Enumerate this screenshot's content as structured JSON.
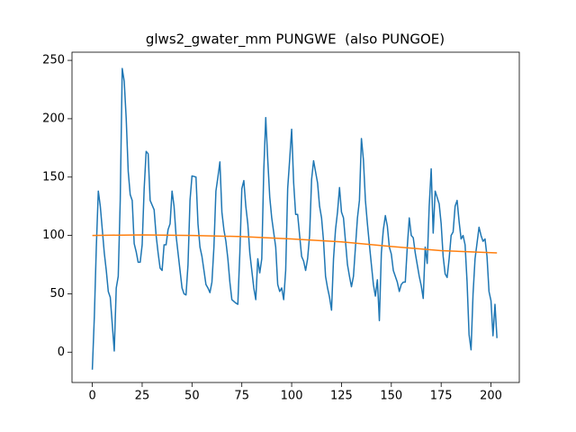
{
  "chart_data": {
    "type": "line",
    "title": "glws2_gwater_mm PUNGWE  (also PUNGOE)",
    "xlim": [
      -10.2,
      214.2
    ],
    "ylim": [
      -26,
      257
    ],
    "xticks": [
      0,
      25,
      50,
      75,
      100,
      125,
      150,
      175,
      200
    ],
    "yticks": [
      0,
      50,
      100,
      150,
      200,
      250
    ],
    "series": [
      {
        "color": "#1f77b4",
        "x": [
          0,
          1,
          2,
          3,
          4,
          5,
          6,
          7,
          8,
          9,
          11,
          12,
          13,
          14,
          15,
          16,
          17,
          18,
          19,
          20,
          21,
          22,
          23,
          24,
          25,
          26,
          27,
          28,
          29,
          31,
          32,
          33,
          34,
          35,
          36,
          37,
          38,
          39,
          40,
          41,
          42,
          43,
          44,
          45,
          46,
          47,
          48,
          49,
          50,
          52,
          53,
          54,
          55,
          56,
          57,
          58,
          59,
          60,
          61,
          62,
          63,
          64,
          65,
          66,
          67,
          68,
          69,
          70,
          72,
          73,
          74,
          75,
          76,
          77,
          78,
          79,
          80,
          81,
          82,
          83,
          84,
          85,
          86,
          87,
          88,
          89,
          90,
          92,
          93,
          94,
          95,
          96,
          97,
          98,
          99,
          100,
          101,
          102,
          103,
          104,
          105,
          106,
          107,
          108,
          109,
          110,
          111,
          113,
          114,
          115,
          116,
          117,
          118,
          119,
          120,
          121,
          122,
          123,
          124,
          125,
          126,
          127,
          128,
          129,
          130,
          131,
          133,
          134,
          135,
          136,
          137,
          138,
          139,
          140,
          141,
          142,
          143,
          144,
          145,
          146,
          147,
          148,
          149,
          150,
          151,
          153,
          154,
          155,
          156,
          157,
          158,
          159,
          160,
          161,
          162,
          163,
          164,
          165,
          166,
          167,
          168,
          169,
          170,
          171,
          172,
          174,
          175,
          176,
          177,
          178,
          179,
          180,
          181,
          182,
          183,
          184,
          185,
          186,
          187,
          188,
          189,
          190,
          191,
          192,
          194,
          195,
          196,
          197,
          198,
          199,
          200,
          201,
          202,
          203
        ],
        "values": [
          -15,
          30,
          90,
          138,
          125,
          105,
          85,
          70,
          52,
          47,
          1,
          55,
          65,
          130,
          243,
          232,
          200,
          155,
          135,
          130,
          93,
          86,
          77,
          77,
          92,
          140,
          172,
          170,
          130,
          122,
          100,
          85,
          72,
          70,
          92,
          92,
          105,
          110,
          138,
          125,
          100,
          85,
          70,
          55,
          50,
          49,
          75,
          130,
          151,
          150,
          110,
          90,
          82,
          70,
          58,
          55,
          51,
          60,
          90,
          138,
          150,
          163,
          120,
          105,
          95,
          80,
          60,
          45,
          42,
          41,
          85,
          140,
          147,
          125,
          110,
          85,
          70,
          55,
          45,
          80,
          68,
          80,
          155,
          201,
          165,
          133,
          115,
          90,
          58,
          52,
          55,
          45,
          70,
          140,
          165,
          191,
          145,
          118,
          118,
          100,
          82,
          78,
          70,
          80,
          100,
          148,
          164,
          145,
          125,
          115,
          95,
          65,
          55,
          47,
          36,
          80,
          105,
          120,
          141,
          120,
          115,
          95,
          75,
          65,
          56,
          65,
          115,
          130,
          183,
          165,
          130,
          110,
          92,
          75,
          58,
          48,
          62,
          27,
          85,
          105,
          117,
          108,
          90,
          84,
          70,
          60,
          52,
          58,
          60,
          60,
          90,
          115,
          100,
          98,
          85,
          75,
          65,
          57,
          46,
          90,
          76,
          125,
          157,
          102,
          138,
          127,
          110,
          82,
          67,
          64,
          80,
          100,
          103,
          125,
          130,
          112,
          97,
          100,
          92,
          60,
          15,
          2,
          50,
          80,
          107,
          100,
          95,
          97,
          82,
          52,
          44,
          14,
          41,
          12
        ]
      },
      {
        "color": "#ff7f0e",
        "x": [
          0,
          25,
          50,
          75,
          100,
          125,
          150,
          175,
          203
        ],
        "values": [
          100,
          100.5,
          100,
          99,
          97,
          94.5,
          90.5,
          87,
          85
        ]
      }
    ]
  }
}
